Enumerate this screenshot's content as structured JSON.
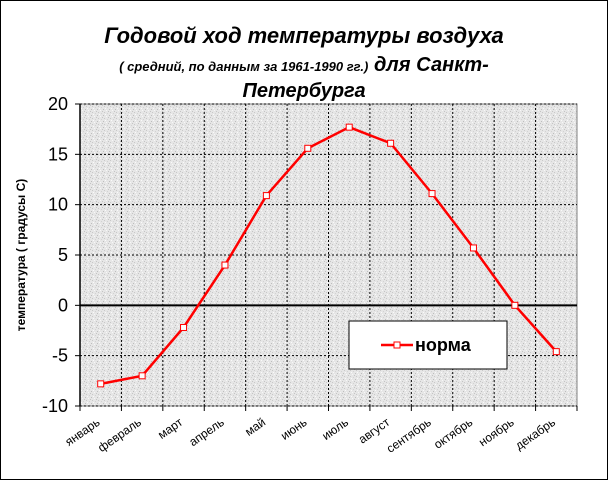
{
  "chart_data": {
    "type": "line",
    "title_line1": "Годовой ход температуры воздуха",
    "title_line2_small": "( средний, по данным за 1961-1990 гг.)",
    "title_line2_big": " для Санкт-",
    "title_line3": "Петербурга",
    "xlabel": "",
    "ylabel": "температура ( градусы С)",
    "categories": [
      "январь",
      "февраль",
      "март",
      "апрель",
      "май",
      "июнь",
      "июль",
      "август",
      "сентябрь",
      "октябрь",
      "ноябрь",
      "декабрь"
    ],
    "x_ticks_between": [
      "январь",
      "февраль",
      "март",
      "апрель",
      "май",
      "июнь",
      "июль",
      "август",
      "сентябрь",
      "октябрь",
      "ноябрь",
      "декабрь"
    ],
    "yticks": [
      "20",
      "15",
      "10",
      "5",
      "0",
      "-5",
      "-10"
    ],
    "ylim": [
      -10,
      20
    ],
    "grid": true,
    "legend_position": "bottom-right",
    "series": [
      {
        "name": "норма",
        "color": "#ff0000",
        "values": [
          -7.8,
          -7.0,
          -2.2,
          4.0,
          10.9,
          15.6,
          17.7,
          16.1,
          11.1,
          5.7,
          0.0,
          -4.6
        ]
      }
    ]
  }
}
